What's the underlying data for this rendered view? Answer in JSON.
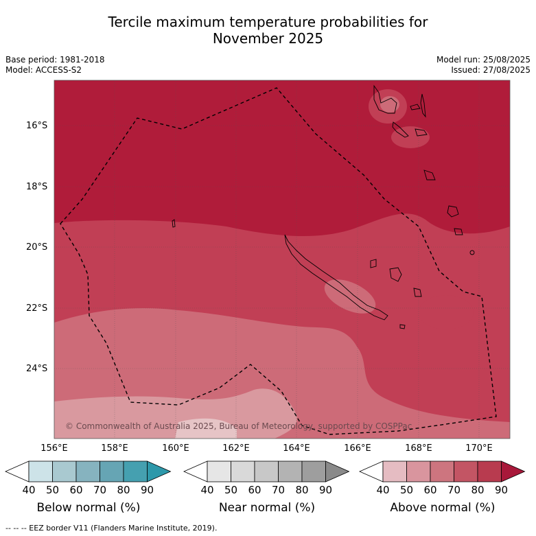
{
  "title_line1": "Tercile maximum temperature probabilities for",
  "title_line2": "November 2025",
  "left_meta": {
    "base_period": "Base period: 1981-2018",
    "model": "Model: ACCESS-S2"
  },
  "right_meta": {
    "model_run": "Model run: 25/08/2025",
    "issued": "Issued: 27/08/2025"
  },
  "lat_labels": [
    "16°S",
    "18°S",
    "20°S",
    "22°S",
    "24°S"
  ],
  "lon_labels": [
    "156°E",
    "158°E",
    "160°E",
    "162°E",
    "164°E",
    "166°E",
    "168°E",
    "170°E"
  ],
  "copyright": "© Commonwealth of Australia 2025, Bureau of Meteorology, supported by COSPPac",
  "colorbars": [
    {
      "title": "Below normal (%)",
      "colors": [
        "#ffffff",
        "#cde3e8",
        "#a9c9d0",
        "#86b3bf",
        "#66a5b4",
        "#45a0b0",
        "#2d98aa"
      ]
    },
    {
      "title": "Near normal (%)",
      "colors": [
        "#ffffff",
        "#e6e6e6",
        "#d9d9d9",
        "#c8c8c8",
        "#b3b3b3",
        "#9e9e9e",
        "#8a8a8a"
      ]
    },
    {
      "title": "Above normal (%)",
      "colors": [
        "#ffffff",
        "#e5bcc2",
        "#d9959e",
        "#cd757f",
        "#c35564",
        "#b83b4f",
        "#a8183a"
      ]
    }
  ],
  "colorbar_ticks": [
    "40",
    "50",
    "60",
    "70",
    "80",
    "90"
  ],
  "footer": "--  --  -- EEZ border V11 (Flanders Marine Institute, 2019).",
  "map_colors": {
    "above_80": "#b01c3a",
    "above_70": "#c13f55",
    "above_60": "#cd6b78",
    "above_50": "#d9999f",
    "above_40": "#e6c4c6"
  }
}
